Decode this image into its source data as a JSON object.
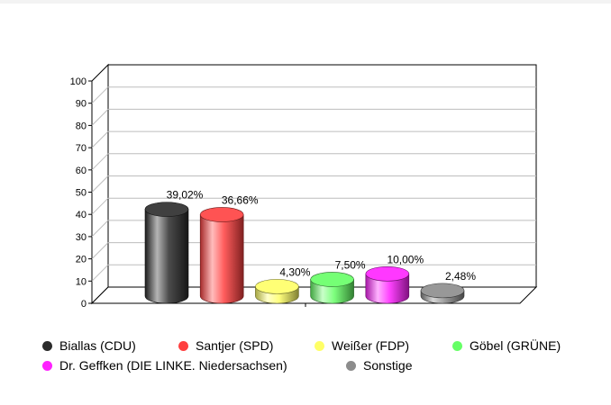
{
  "chart_data": {
    "type": "bar",
    "categories": [
      "Biallas (CDU)",
      "Santjer (SPD)",
      "Weißer (FDP)",
      "Göbel (GRÜNE)",
      "Dr. Geffken (DIE LINKE. Niedersachsen)",
      "Sonstige"
    ],
    "values": [
      39.02,
      36.66,
      4.3,
      7.5,
      10.0,
      2.48
    ],
    "data_labels": [
      "39,02%",
      "36,66%",
      "4,30%",
      "7,50%",
      "10,00%",
      "2,48%"
    ],
    "colors": [
      "#2b2b2b",
      "#ff4040",
      "#ffff66",
      "#66ff66",
      "#ff22ff",
      "#8c8c8c"
    ],
    "y_ticks": [
      "0",
      "10",
      "20",
      "30",
      "40",
      "50",
      "60",
      "70",
      "80",
      "90",
      "100"
    ],
    "ylim": [
      0,
      100
    ],
    "grid": true,
    "legend_position": "bottom",
    "style": "3d-cylinder"
  }
}
